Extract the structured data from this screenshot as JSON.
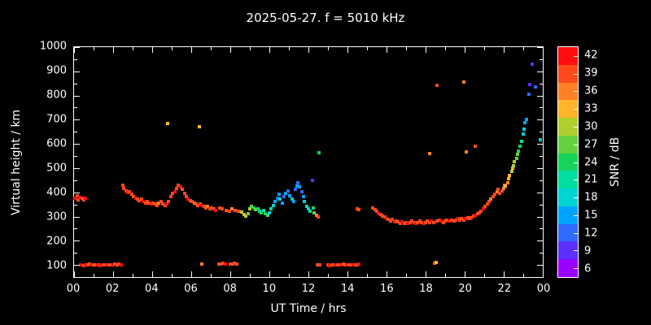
{
  "chart_data": {
    "type": "scatter",
    "title": "2025-05-27. f = 5010 kHz",
    "xlabel": "UT Time / hrs",
    "ylabel": "Virtual height / km",
    "colorbar_label": "SNR / dB",
    "xlim": [
      0,
      24
    ],
    "ylim": [
      50,
      1000
    ],
    "grid": false,
    "background": "#000000",
    "foreground": "#ffffff",
    "x_ticks": {
      "values": [
        0,
        2,
        4,
        6,
        8,
        10,
        12,
        14,
        16,
        18,
        20,
        22,
        24
      ],
      "labels": [
        "00",
        "02",
        "04",
        "06",
        "08",
        "10",
        "12",
        "14",
        "16",
        "18",
        "20",
        "22",
        "00"
      ]
    },
    "x_minor": [
      1,
      3,
      5,
      7,
      9,
      11,
      13,
      15,
      17,
      19,
      21,
      23
    ],
    "y_ticks": {
      "values": [
        100,
        200,
        300,
        400,
        500,
        600,
        700,
        800,
        900,
        1000
      ],
      "labels": [
        "100",
        "200",
        "300",
        "400",
        "500",
        "600",
        "700",
        "800",
        "900",
        "1000"
      ]
    },
    "y_minor": [
      150,
      250,
      350,
      450,
      550,
      650,
      750,
      850,
      950
    ],
    "colorbar_lim": [
      4.5,
      43.5
    ],
    "colorbar_ticks": [
      6,
      9,
      12,
      15,
      18,
      21,
      24,
      27,
      30,
      33,
      36,
      39,
      42
    ],
    "snr_bands": [
      {
        "value": 6,
        "color": "#9b00ff"
      },
      {
        "value": 9,
        "color": "#5d2fff"
      },
      {
        "value": 12,
        "color": "#2f6bff"
      },
      {
        "value": 15,
        "color": "#00a4ff"
      },
      {
        "value": 18,
        "color": "#00d4d4"
      },
      {
        "value": 21,
        "color": "#00dfa0"
      },
      {
        "value": 24,
        "color": "#17d35c"
      },
      {
        "value": 27,
        "color": "#64d23c"
      },
      {
        "value": 30,
        "color": "#b0cf2e"
      },
      {
        "value": 33,
        "color": "#ffb42a"
      },
      {
        "value": 36,
        "color": "#ff8126"
      },
      {
        "value": 39,
        "color": "#ff4a1c"
      },
      {
        "value": 42,
        "color": "#ff0f0f"
      }
    ],
    "points": [
      [
        0.05,
        375,
        41
      ],
      [
        0.15,
        385,
        40
      ],
      [
        0.2,
        370,
        39
      ],
      [
        0.3,
        380,
        41
      ],
      [
        0.4,
        375,
        40
      ],
      [
        0.5,
        370,
        39
      ],
      [
        0.6,
        375,
        41
      ],
      [
        0.35,
        100,
        41
      ],
      [
        0.5,
        98,
        40
      ],
      [
        0.6,
        102,
        41
      ],
      [
        0.7,
        100,
        39
      ],
      [
        0.8,
        103,
        40
      ],
      [
        0.9,
        100,
        41
      ],
      [
        1.0,
        99,
        40
      ],
      [
        1.1,
        102,
        39
      ],
      [
        1.2,
        100,
        41
      ],
      [
        1.3,
        101,
        40
      ],
      [
        1.35,
        98,
        41
      ],
      [
        1.5,
        100,
        39
      ],
      [
        1.6,
        102,
        40
      ],
      [
        1.7,
        100,
        41
      ],
      [
        1.8,
        99,
        40
      ],
      [
        1.9,
        101,
        39
      ],
      [
        2.0,
        100,
        41
      ],
      [
        2.1,
        103,
        40
      ],
      [
        2.2,
        100,
        39
      ],
      [
        2.3,
        105,
        40
      ],
      [
        2.4,
        101,
        41
      ],
      [
        2.5,
        430,
        40
      ],
      [
        2.55,
        415,
        39
      ],
      [
        2.65,
        405,
        40
      ],
      [
        2.75,
        398,
        41
      ],
      [
        2.85,
        402,
        39
      ],
      [
        2.95,
        392,
        40
      ],
      [
        3.05,
        383,
        39
      ],
      [
        3.15,
        377,
        41
      ],
      [
        3.25,
        371,
        40
      ],
      [
        3.35,
        366,
        39
      ],
      [
        3.45,
        372,
        40
      ],
      [
        3.55,
        362,
        41
      ],
      [
        3.65,
        357,
        39
      ],
      [
        3.75,
        362,
        40
      ],
      [
        3.85,
        356,
        39
      ],
      [
        3.95,
        352,
        41
      ],
      [
        4.05,
        357,
        40
      ],
      [
        4.15,
        351,
        39
      ],
      [
        4.25,
        346,
        40
      ],
      [
        4.35,
        356,
        36
      ],
      [
        4.45,
        362,
        39
      ],
      [
        4.55,
        352,
        40
      ],
      [
        4.65,
        347,
        39
      ],
      [
        4.75,
        352,
        41
      ],
      [
        4.85,
        362,
        40
      ],
      [
        4.95,
        382,
        39
      ],
      [
        5.05,
        396,
        40
      ],
      [
        5.15,
        402,
        41
      ],
      [
        5.25,
        416,
        39
      ],
      [
        5.35,
        428,
        40
      ],
      [
        5.45,
        422,
        41
      ],
      [
        5.55,
        412,
        39
      ],
      [
        5.65,
        396,
        40
      ],
      [
        5.75,
        382,
        39
      ],
      [
        5.85,
        372,
        41
      ],
      [
        5.95,
        366,
        40
      ],
      [
        6.05,
        361,
        39
      ],
      [
        6.15,
        356,
        36
      ],
      [
        6.25,
        351,
        40
      ],
      [
        6.35,
        346,
        39
      ],
      [
        6.45,
        352,
        40
      ],
      [
        6.55,
        346,
        41
      ],
      [
        6.65,
        341,
        39
      ],
      [
        6.75,
        336,
        40
      ],
      [
        6.85,
        341,
        36
      ],
      [
        6.95,
        331,
        39
      ],
      [
        7.05,
        336,
        40
      ],
      [
        7.15,
        331,
        39
      ],
      [
        7.25,
        326,
        41
      ],
      [
        7.45,
        336,
        39
      ],
      [
        7.6,
        331,
        40
      ],
      [
        7.8,
        326,
        39
      ],
      [
        7.95,
        321,
        40
      ],
      [
        8.1,
        331,
        36
      ],
      [
        8.25,
        326,
        39
      ],
      [
        8.4,
        322,
        40
      ],
      [
        4.8,
        685,
        34
      ],
      [
        6.4,
        672,
        34
      ],
      [
        6.55,
        104,
        37
      ],
      [
        7.4,
        105,
        40
      ],
      [
        7.5,
        103,
        39
      ],
      [
        7.62,
        106,
        40
      ],
      [
        7.75,
        104,
        41
      ],
      [
        8.0,
        105,
        39
      ],
      [
        8.12,
        103,
        40
      ],
      [
        8.22,
        106,
        39
      ],
      [
        8.35,
        104,
        40
      ],
      [
        8.6,
        318,
        30
      ],
      [
        8.7,
        308,
        33
      ],
      [
        8.8,
        303,
        30
      ],
      [
        8.9,
        312,
        27
      ],
      [
        9.0,
        332,
        30
      ],
      [
        9.1,
        342,
        27
      ],
      [
        9.2,
        337,
        24
      ],
      [
        9.3,
        327,
        27
      ],
      [
        9.4,
        331,
        24
      ],
      [
        9.5,
        321,
        21
      ],
      [
        9.6,
        316,
        24
      ],
      [
        9.7,
        326,
        21
      ],
      [
        9.8,
        311,
        24
      ],
      [
        9.9,
        306,
        27
      ],
      [
        10.0,
        316,
        18
      ],
      [
        10.1,
        331,
        21
      ],
      [
        10.2,
        346,
        18
      ],
      [
        10.3,
        361,
        15
      ],
      [
        10.4,
        376,
        12
      ],
      [
        10.5,
        391,
        15
      ],
      [
        10.55,
        371,
        18
      ],
      [
        10.65,
        356,
        15
      ],
      [
        10.75,
        381,
        12
      ],
      [
        10.85,
        396,
        15
      ],
      [
        10.95,
        406,
        12
      ],
      [
        11.05,
        386,
        15
      ],
      [
        11.15,
        371,
        18
      ],
      [
        11.25,
        361,
        15
      ],
      [
        11.35,
        411,
        12
      ],
      [
        11.4,
        426,
        15
      ],
      [
        11.45,
        441,
        12
      ],
      [
        11.55,
        421,
        15
      ],
      [
        11.65,
        401,
        12
      ],
      [
        11.75,
        381,
        15
      ],
      [
        11.8,
        361,
        18
      ],
      [
        11.9,
        341,
        21
      ],
      [
        12.0,
        331,
        18
      ],
      [
        12.1,
        321,
        21
      ],
      [
        12.2,
        451,
        9
      ],
      [
        12.25,
        336,
        24
      ],
      [
        12.3,
        316,
        27
      ],
      [
        12.4,
        305,
        36
      ],
      [
        12.5,
        298,
        39
      ],
      [
        12.55,
        565,
        24
      ],
      [
        12.45,
        100,
        39
      ],
      [
        12.58,
        102,
        40
      ],
      [
        13.0,
        100,
        40
      ],
      [
        13.1,
        98,
        41
      ],
      [
        13.2,
        101,
        39
      ],
      [
        13.3,
        100,
        40
      ],
      [
        13.4,
        102,
        41
      ],
      [
        13.5,
        99,
        39
      ],
      [
        13.6,
        101,
        40
      ],
      [
        13.7,
        100,
        41
      ],
      [
        13.8,
        103,
        39
      ],
      [
        13.9,
        100,
        40
      ],
      [
        14.0,
        102,
        41
      ],
      [
        14.1,
        100,
        39
      ],
      [
        14.2,
        101,
        40
      ],
      [
        14.3,
        99,
        41
      ],
      [
        14.4,
        102,
        39
      ],
      [
        14.5,
        100,
        40
      ],
      [
        14.6,
        103,
        41
      ],
      [
        14.5,
        332,
        39
      ],
      [
        14.6,
        327,
        40
      ],
      [
        15.3,
        334,
        39
      ],
      [
        15.4,
        327,
        40
      ],
      [
        15.5,
        322,
        39
      ],
      [
        15.6,
        312,
        41
      ],
      [
        15.7,
        307,
        40
      ],
      [
        15.8,
        302,
        39
      ],
      [
        15.9,
        297,
        40
      ],
      [
        16.0,
        292,
        41
      ],
      [
        16.1,
        287,
        39
      ],
      [
        16.2,
        282,
        40
      ],
      [
        16.3,
        287,
        39
      ],
      [
        16.4,
        277,
        41
      ],
      [
        16.5,
        282,
        40
      ],
      [
        16.6,
        277,
        39
      ],
      [
        16.7,
        272,
        40
      ],
      [
        16.8,
        277,
        41
      ],
      [
        16.9,
        271,
        39
      ],
      [
        17.0,
        276,
        40
      ],
      [
        17.1,
        271,
        41
      ],
      [
        17.2,
        276,
        39
      ],
      [
        17.3,
        281,
        40
      ],
      [
        17.4,
        276,
        39
      ],
      [
        17.5,
        271,
        41
      ],
      [
        17.6,
        276,
        40
      ],
      [
        17.7,
        281,
        39
      ],
      [
        17.8,
        276,
        40
      ],
      [
        17.9,
        271,
        41
      ],
      [
        18.0,
        276,
        39
      ],
      [
        18.1,
        281,
        40
      ],
      [
        18.2,
        276,
        39
      ],
      [
        18.3,
        281,
        41
      ],
      [
        18.4,
        276,
        40
      ],
      [
        18.6,
        281,
        39
      ],
      [
        18.7,
        286,
        40
      ],
      [
        18.8,
        281,
        41
      ],
      [
        18.9,
        276,
        39
      ],
      [
        19.0,
        281,
        40
      ],
      [
        19.1,
        286,
        39
      ],
      [
        19.2,
        281,
        41
      ],
      [
        19.35,
        286,
        40
      ],
      [
        19.45,
        281,
        39
      ],
      [
        19.55,
        286,
        40
      ],
      [
        19.65,
        291,
        41
      ],
      [
        19.75,
        286,
        39
      ],
      [
        19.85,
        291,
        40
      ],
      [
        19.95,
        286,
        39
      ],
      [
        20.05,
        291,
        41
      ],
      [
        20.15,
        296,
        40
      ],
      [
        20.25,
        291,
        39
      ],
      [
        20.35,
        296,
        40
      ],
      [
        20.45,
        301,
        39
      ],
      [
        20.55,
        306,
        41
      ],
      [
        20.65,
        311,
        40
      ],
      [
        20.75,
        316,
        39
      ],
      [
        20.85,
        321,
        40
      ],
      [
        20.95,
        331,
        41
      ],
      [
        21.05,
        341,
        39
      ],
      [
        21.15,
        351,
        40
      ],
      [
        21.25,
        361,
        39
      ],
      [
        21.35,
        371,
        36
      ],
      [
        21.45,
        381,
        39
      ],
      [
        21.55,
        391,
        40
      ],
      [
        21.65,
        401,
        36
      ],
      [
        21.7,
        411,
        39
      ],
      [
        21.8,
        396,
        40
      ],
      [
        21.9,
        406,
        39
      ],
      [
        22.0,
        416,
        36
      ],
      [
        22.05,
        431,
        36
      ],
      [
        22.1,
        426,
        33
      ],
      [
        22.2,
        441,
        36
      ],
      [
        22.25,
        456,
        33
      ],
      [
        22.3,
        471,
        33
      ],
      [
        22.4,
        486,
        30
      ],
      [
        22.45,
        501,
        33
      ],
      [
        22.5,
        511,
        30
      ],
      [
        22.55,
        526,
        30
      ],
      [
        22.65,
        541,
        27
      ],
      [
        22.7,
        556,
        27
      ],
      [
        22.75,
        571,
        24
      ],
      [
        22.85,
        591,
        24
      ],
      [
        22.9,
        611,
        21
      ],
      [
        23.0,
        641,
        18
      ],
      [
        23.05,
        661,
        18
      ],
      [
        23.1,
        687,
        15
      ],
      [
        23.15,
        701,
        15
      ],
      [
        18.2,
        560,
        36
      ],
      [
        18.6,
        843,
        40
      ],
      [
        19.95,
        855,
        37
      ],
      [
        20.1,
        566,
        36
      ],
      [
        20.55,
        591,
        40
      ],
      [
        23.3,
        806,
        12
      ],
      [
        23.34,
        847,
        9
      ],
      [
        23.46,
        930,
        9
      ],
      [
        23.63,
        837,
        12
      ],
      [
        23.88,
        617,
        18
      ],
      [
        18.45,
        107,
        39
      ],
      [
        18.55,
        112,
        33
      ]
    ]
  }
}
